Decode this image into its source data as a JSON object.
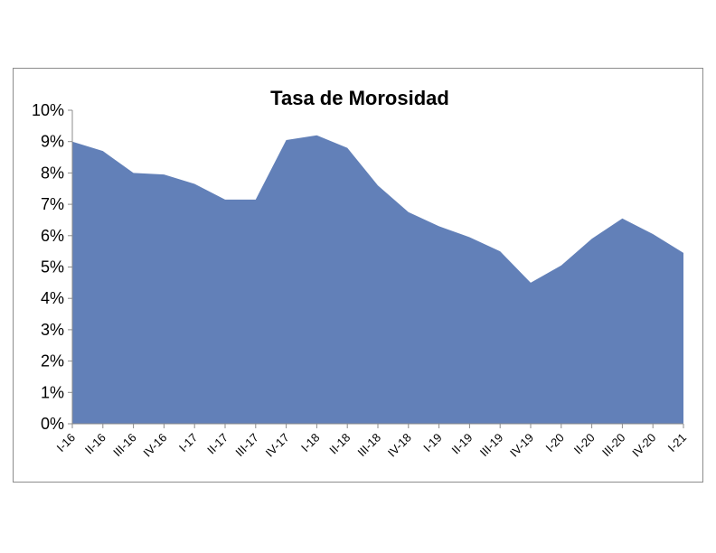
{
  "chart_data": {
    "type": "area",
    "title": "Tasa de Morosidad",
    "xlabel": "",
    "ylabel": "",
    "categories": [
      "I-16",
      "II-16",
      "III-16",
      "IV-16",
      "I-17",
      "II-17",
      "III-17",
      "IV-17",
      "I-18",
      "II-18",
      "III-18",
      "IV-18",
      "I-19",
      "II-19",
      "III-19",
      "IV-19",
      "I-20",
      "II-20",
      "III-20",
      "IV-20",
      "I-21"
    ],
    "series": [
      {
        "values": [
          9.0,
          8.7,
          8.0,
          7.95,
          7.65,
          7.15,
          7.15,
          9.05,
          9.2,
          8.8,
          7.6,
          6.75,
          6.3,
          5.95,
          5.5,
          4.5,
          5.05,
          5.9,
          6.55,
          6.05,
          5.45
        ]
      }
    ],
    "ylim": [
      0,
      10
    ],
    "yticks": [
      "0%",
      "1%",
      "2%",
      "3%",
      "4%",
      "5%",
      "6%",
      "7%",
      "8%",
      "9%",
      "10%"
    ],
    "grid": false,
    "legend": "none",
    "colors": {
      "area": "#6280b8",
      "axis": "#8c8c8c",
      "frame": "#8c8c8c"
    }
  }
}
